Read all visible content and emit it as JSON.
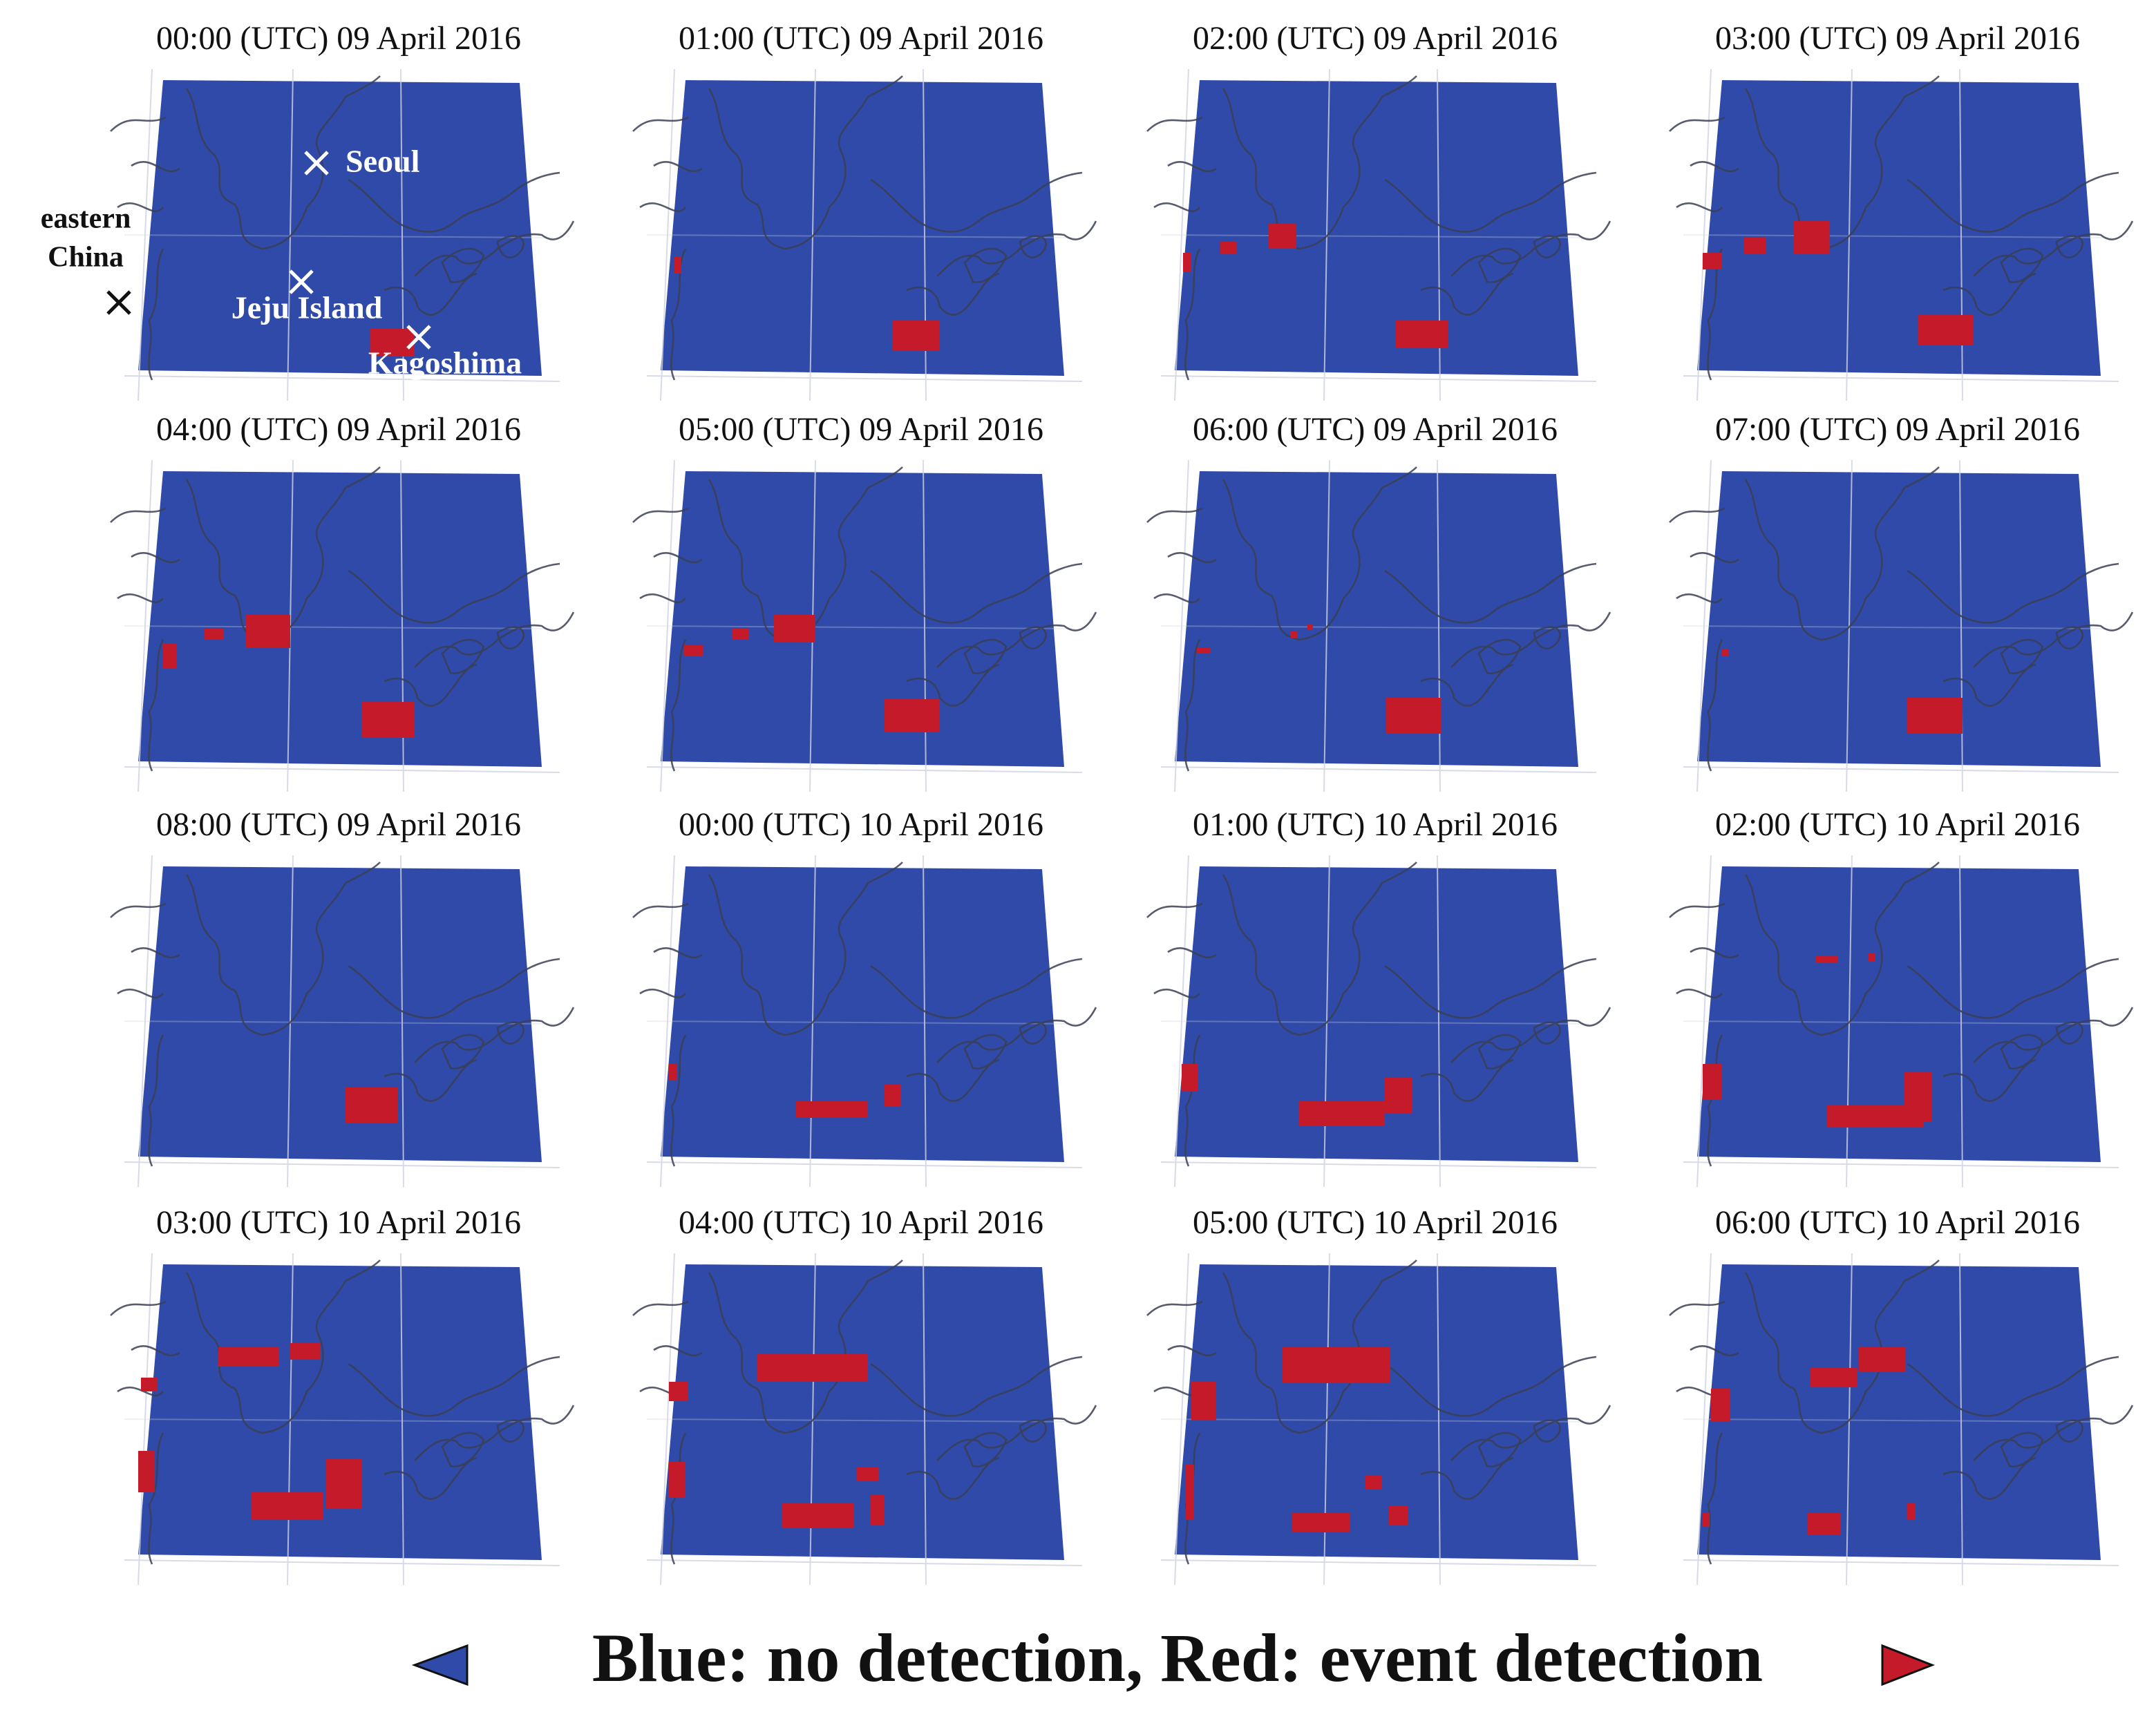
{
  "panels": [
    {
      "title": "00:00 (UTC) 09 April 2016"
    },
    {
      "title": "01:00 (UTC) 09 April 2016"
    },
    {
      "title": "02:00 (UTC) 09 April 2016"
    },
    {
      "title": "03:00 (UTC) 09 April 2016"
    },
    {
      "title": "04:00 (UTC) 09 April 2016"
    },
    {
      "title": "05:00 (UTC) 09 April 2016"
    },
    {
      "title": "06:00 (UTC) 09 April 2016"
    },
    {
      "title": "07:00 (UTC) 09 April 2016"
    },
    {
      "title": "08:00 (UTC) 09 April 2016"
    },
    {
      "title": "00:00 (UTC) 10 April 2016"
    },
    {
      "title": "01:00 (UTC) 10 April 2016"
    },
    {
      "title": "02:00 (UTC) 10 April 2016"
    },
    {
      "title": "03:00 (UTC) 10 April 2016"
    },
    {
      "title": "04:00 (UTC) 10 April 2016"
    },
    {
      "title": "05:00 (UTC) 10 April 2016"
    },
    {
      "title": "06:00 (UTC) 10 April 2016"
    }
  ],
  "annotations": {
    "seoul": "Seoul",
    "eastern": "eastern",
    "china": "China",
    "jeju": "Jeju Island",
    "kagoshima": "Kagoshima"
  },
  "legend": "Blue: no detection, Red: event detection"
}
